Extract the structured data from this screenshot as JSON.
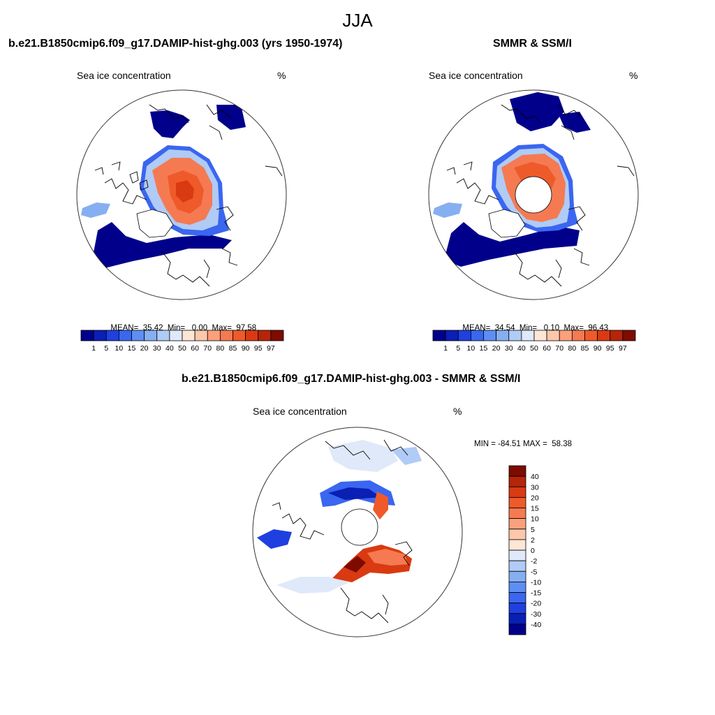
{
  "title": "JJA",
  "colors": {
    "abs_scale": [
      "#00008b",
      "#0a1fb4",
      "#1f3fe0",
      "#3a66f0",
      "#5d8ff2",
      "#86aff2",
      "#b0cbf5",
      "#dfe9fa",
      "#fde6d6",
      "#fcc7ab",
      "#fba07c",
      "#f57a52",
      "#ef5a2a",
      "#d93a12",
      "#b4250a",
      "#7e0b00"
    ],
    "diff_scale": [
      "#00008b",
      "#0a1fb4",
      "#1f3fe0",
      "#3a66f0",
      "#5d8ff2",
      "#86aff2",
      "#b0cbf5",
      "#dfe9fa",
      "#fde6d6",
      "#fcc7ab",
      "#fba07c",
      "#f57a52",
      "#ef5a2a",
      "#d93a12",
      "#b4250a",
      "#7e0b00"
    ],
    "land_line": "#000000"
  },
  "chart_data": [
    {
      "type": "heatmap",
      "name": "model",
      "panel_title": "b.e21.B1850cmip6.f09_g17.DAMIP-hist-ghg.003 (yrs 1950-1974)",
      "left_label": "Sea ice concentration",
      "right_label": "%",
      "stats": {
        "mean_label": "MEAN=",
        "mean": "35.42",
        "min_label": "Min=",
        "min": "0.00",
        "max_label": "Max=",
        "max": "97.58"
      },
      "colorbar_ticks": [
        "1",
        "5",
        "10",
        "15",
        "20",
        "30",
        "40",
        "50",
        "60",
        "70",
        "80",
        "85",
        "90",
        "95",
        "97"
      ],
      "projection": "north polar stereographic",
      "pole_hole": false
    },
    {
      "type": "heatmap",
      "name": "obs",
      "panel_title": "SMMR & SSM/I",
      "left_label": "Sea ice concentration",
      "right_label": "%",
      "stats": {
        "mean_label": "MEAN=",
        "mean": "34.54",
        "min_label": "Min=",
        "min": "0.10",
        "max_label": "Max=",
        "max": "96.43"
      },
      "colorbar_ticks": [
        "1",
        "5",
        "10",
        "15",
        "20",
        "30",
        "40",
        "50",
        "60",
        "70",
        "80",
        "85",
        "90",
        "95",
        "97"
      ],
      "projection": "north polar stereographic",
      "pole_hole": true
    },
    {
      "type": "heatmap",
      "name": "diff",
      "panel_title": "b.e21.B1850cmip6.f09_g17.DAMIP-hist-ghg.003 - SMMR & SSM/I",
      "left_label": "Sea ice concentration",
      "right_label": "%",
      "minmax_text": "MIN = -84.51 MAX =  58.38",
      "colorbar_ticks": [
        "40",
        "30",
        "20",
        "15",
        "10",
        "5",
        "2",
        "0",
        "-2",
        "-5",
        "-10",
        "-15",
        "-20",
        "-30",
        "-40"
      ],
      "projection": "north polar stereographic",
      "pole_hole": true
    }
  ]
}
